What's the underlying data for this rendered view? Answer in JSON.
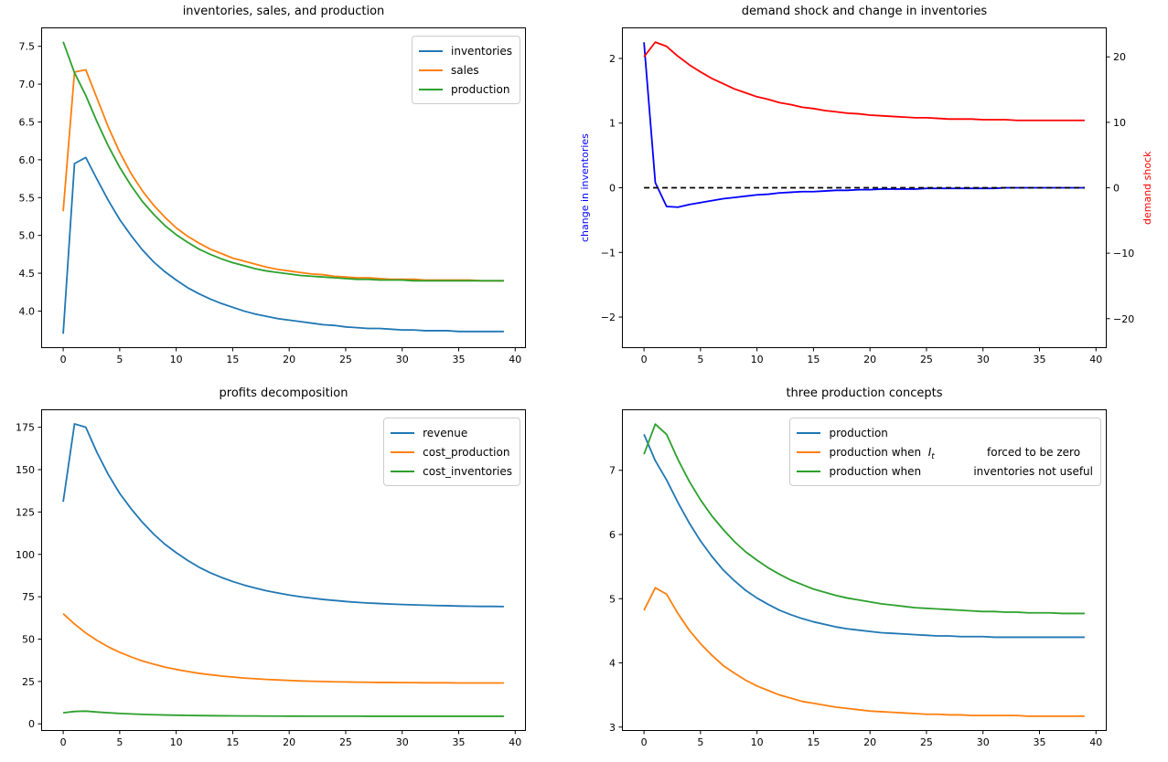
{
  "figure_background": "#ffffff",
  "t": [
    0,
    1,
    2,
    3,
    4,
    5,
    6,
    7,
    8,
    9,
    10,
    11,
    12,
    13,
    14,
    15,
    16,
    17,
    18,
    19,
    20,
    21,
    22,
    23,
    24,
    25,
    26,
    27,
    28,
    29,
    30,
    31,
    32,
    33,
    34,
    35,
    36,
    37,
    38,
    39
  ],
  "chart_data": [
    {
      "key": "plot1",
      "type": "line",
      "title": "inventories, sales, and production",
      "xlim": [
        -1.95,
        40.95
      ],
      "ylim": [
        3.51,
        7.75
      ],
      "grid": false,
      "xticks": {
        "values": [
          0,
          5,
          10,
          15,
          20,
          25,
          30,
          35,
          40
        ],
        "labels": [
          "0",
          "5",
          "10",
          "15",
          "20",
          "25",
          "30",
          "35",
          "40"
        ]
      },
      "yticks": {
        "values": [
          4.0,
          4.5,
          5.0,
          5.5,
          6.0,
          6.5,
          7.0,
          7.5
        ],
        "labels": [
          "4.0",
          "4.5",
          "5.0",
          "5.5",
          "6.0",
          "6.5",
          "7.0",
          "7.5"
        ]
      },
      "legend": {
        "loc": "upper right",
        "items": [
          {
            "color": "#1f77b4",
            "parts": [
              {
                "text": "inventories",
                "style": "normal"
              }
            ]
          },
          {
            "color": "#ff7f0e",
            "parts": [
              {
                "text": "sales",
                "style": "normal"
              }
            ]
          },
          {
            "color": "#2ca02c",
            "parts": [
              {
                "text": "production",
                "style": "normal"
              }
            ]
          }
        ]
      },
      "series": [
        {
          "name": "inventories",
          "color": "#1f77b4",
          "values": [
            3.7,
            5.95,
            6.03,
            5.74,
            5.46,
            5.21,
            5.0,
            4.81,
            4.65,
            4.52,
            4.41,
            4.31,
            4.23,
            4.16,
            4.1,
            4.05,
            4.0,
            3.96,
            3.93,
            3.9,
            3.88,
            3.86,
            3.84,
            3.82,
            3.81,
            3.79,
            3.78,
            3.77,
            3.77,
            3.76,
            3.75,
            3.75,
            3.74,
            3.74,
            3.74,
            3.73,
            3.73,
            3.73,
            3.73,
            3.73
          ]
        },
        {
          "name": "sales",
          "color": "#ff7f0e",
          "values": [
            5.32,
            7.16,
            7.19,
            6.81,
            6.43,
            6.1,
            5.82,
            5.59,
            5.4,
            5.24,
            5.1,
            4.99,
            4.9,
            4.82,
            4.76,
            4.7,
            4.66,
            4.62,
            4.58,
            4.55,
            4.53,
            4.51,
            4.49,
            4.48,
            4.46,
            4.45,
            4.44,
            4.44,
            4.43,
            4.42,
            4.42,
            4.42,
            4.41,
            4.41,
            4.41,
            4.41,
            4.41,
            4.4,
            4.4,
            4.4
          ]
        },
        {
          "name": "production",
          "color": "#2ca02c",
          "values": [
            7.56,
            7.15,
            6.85,
            6.5,
            6.18,
            5.9,
            5.66,
            5.45,
            5.28,
            5.13,
            5.01,
            4.91,
            4.82,
            4.75,
            4.69,
            4.64,
            4.6,
            4.56,
            4.53,
            4.51,
            4.49,
            4.47,
            4.46,
            4.45,
            4.44,
            4.43,
            4.42,
            4.42,
            4.41,
            4.41,
            4.41,
            4.4,
            4.4,
            4.4,
            4.4,
            4.4,
            4.4,
            4.4,
            4.4,
            4.4
          ]
        }
      ]
    },
    {
      "key": "plot2",
      "type": "line",
      "title": "demand shock and change in inventories",
      "ylabel": {
        "text": "change in inventories",
        "color": "#0000ff"
      },
      "ylabel_right": {
        "text": "demand shock",
        "color": "#ff0000"
      },
      "xlim": [
        -1.95,
        40.95
      ],
      "ylim": [
        -2.48,
        2.48
      ],
      "ylim_right": [
        -24.5,
        24.5
      ],
      "grid": false,
      "xticks": {
        "values": [
          0,
          5,
          10,
          15,
          20,
          25,
          30,
          35,
          40
        ],
        "labels": [
          "0",
          "5",
          "10",
          "15",
          "20",
          "25",
          "30",
          "35",
          "40"
        ]
      },
      "yticks": {
        "values": [
          -2,
          -1,
          0,
          1,
          2
        ],
        "labels": [
          "−2",
          "−1",
          "0",
          "1",
          "2"
        ]
      },
      "yticks_right": {
        "values": [
          -20,
          -10,
          0,
          10,
          20
        ],
        "labels": [
          "−20",
          "−10",
          "0",
          "10",
          "20"
        ]
      },
      "series": [
        {
          "name": "change in inventories",
          "color": "#0000ff",
          "axis": "left",
          "values": [
            2.25,
            0.08,
            -0.29,
            -0.3,
            -0.26,
            -0.23,
            -0.2,
            -0.17,
            -0.15,
            -0.13,
            -0.11,
            -0.1,
            -0.08,
            -0.07,
            -0.06,
            -0.06,
            -0.05,
            -0.04,
            -0.04,
            -0.03,
            -0.03,
            -0.02,
            -0.02,
            -0.02,
            -0.02,
            -0.01,
            -0.01,
            -0.01,
            -0.01,
            -0.01,
            -0.01,
            -0.01,
            0.0,
            0.0,
            0.0,
            0.0,
            0.0,
            0.0,
            0.0,
            0.0
          ]
        },
        {
          "name": "zero line",
          "color": "#000000",
          "axis": "left",
          "dash": "6,4",
          "x": [
            0,
            39
          ],
          "values": [
            0,
            0
          ]
        },
        {
          "name": "demand shock",
          "color": "#ff0000",
          "axis": "right",
          "values": [
            20.0,
            22.25,
            21.6,
            20.1,
            18.8,
            17.7,
            16.7,
            15.9,
            15.1,
            14.5,
            13.9,
            13.5,
            13.0,
            12.7,
            12.3,
            12.1,
            11.8,
            11.6,
            11.4,
            11.3,
            11.1,
            11.0,
            10.9,
            10.8,
            10.7,
            10.7,
            10.6,
            10.5,
            10.5,
            10.5,
            10.4,
            10.4,
            10.4,
            10.3,
            10.3,
            10.3,
            10.3,
            10.3,
            10.3,
            10.3
          ]
        }
      ]
    },
    {
      "key": "plot3",
      "type": "line",
      "title": "profits decomposition",
      "xlim": [
        -1.95,
        40.95
      ],
      "ylim": [
        -4.2,
        185.6
      ],
      "grid": false,
      "xticks": {
        "values": [
          0,
          5,
          10,
          15,
          20,
          25,
          30,
          35,
          40
        ],
        "labels": [
          "0",
          "5",
          "10",
          "15",
          "20",
          "25",
          "30",
          "35",
          "40"
        ]
      },
      "yticks": {
        "values": [
          0,
          25,
          50,
          75,
          100,
          125,
          150,
          175
        ],
        "labels": [
          "0",
          "25",
          "50",
          "75",
          "100",
          "125",
          "150",
          "175"
        ]
      },
      "legend": {
        "loc": "upper right",
        "items": [
          {
            "color": "#1f77b4",
            "parts": [
              {
                "text": "revenue",
                "style": "normal"
              }
            ]
          },
          {
            "color": "#ff7f0e",
            "parts": [
              {
                "text": "cost_production",
                "style": "normal"
              }
            ]
          },
          {
            "color": "#2ca02c",
            "parts": [
              {
                "text": "cost_inventories",
                "style": "normal"
              }
            ]
          }
        ]
      },
      "series": [
        {
          "name": "revenue",
          "color": "#1f77b4",
          "values": [
            131,
            177,
            175,
            160,
            147,
            136,
            127,
            119,
            112,
            106,
            101,
            96.5,
            92.5,
            89.2,
            86.4,
            84.0,
            81.9,
            80.1,
            78.5,
            77.2,
            76.0,
            75.0,
            74.2,
            73.4,
            72.8,
            72.2,
            71.7,
            71.3,
            71.0,
            70.7,
            70.4,
            70.2,
            70.0,
            69.8,
            69.7,
            69.5,
            69.4,
            69.3,
            69.3,
            69.2
          ]
        },
        {
          "name": "cost_production",
          "color": "#ff7f0e",
          "values": [
            65.0,
            58.9,
            53.6,
            49.2,
            45.4,
            42.2,
            39.5,
            37.1,
            35.2,
            33.5,
            32.1,
            30.9,
            29.8,
            29.0,
            28.2,
            27.6,
            27.0,
            26.6,
            26.2,
            25.9,
            25.6,
            25.3,
            25.1,
            25.0,
            24.8,
            24.7,
            24.6,
            24.5,
            24.4,
            24.4,
            24.3,
            24.3,
            24.2,
            24.2,
            24.2,
            24.1,
            24.1,
            24.1,
            24.1,
            24.1
          ]
        },
        {
          "name": "cost_inventories",
          "color": "#2ca02c",
          "values": [
            6.5,
            7.3,
            7.5,
            6.95,
            6.5,
            6.13,
            5.83,
            5.58,
            5.38,
            5.21,
            5.07,
            4.96,
            4.87,
            4.79,
            4.73,
            4.68,
            4.64,
            4.61,
            4.58,
            4.56,
            4.54,
            4.52,
            4.51,
            4.5,
            4.49,
            4.48,
            4.48,
            4.47,
            4.47,
            4.46,
            4.46,
            4.46,
            4.45,
            4.45,
            4.45,
            4.45,
            4.45,
            4.45,
            4.45,
            4.45
          ]
        }
      ]
    },
    {
      "key": "plot4",
      "type": "line",
      "title": "three production concepts",
      "xlim": [
        -1.95,
        40.95
      ],
      "ylim": [
        2.94,
        7.95
      ],
      "grid": false,
      "xticks": {
        "values": [
          0,
          5,
          10,
          15,
          20,
          25,
          30,
          35,
          40
        ],
        "labels": [
          "0",
          "5",
          "10",
          "15",
          "20",
          "25",
          "30",
          "35",
          "40"
        ]
      },
      "yticks": {
        "values": [
          3,
          4,
          5,
          6,
          7
        ],
        "labels": [
          "3",
          "4",
          "5",
          "6",
          "7"
        ]
      },
      "legend": {
        "loc": "upper right",
        "items": [
          {
            "color": "#1f77b4",
            "parts": [
              {
                "text": "production",
                "style": "normal"
              }
            ]
          },
          {
            "color": "#ff7f0e",
            "parts": [
              {
                "text": "production when  ",
                "style": "normal"
              },
              {
                "text": "I",
                "style": "math-italic"
              },
              {
                "text": "t",
                "style": "math-sub"
              },
              {
                "text": "               forced to be zero",
                "style": "normal"
              }
            ]
          },
          {
            "color": "#2ca02c",
            "parts": [
              {
                "text": "production when               inventories not useful",
                "style": "normal"
              }
            ]
          }
        ]
      },
      "series": [
        {
          "name": "production",
          "color": "#1f77b4",
          "values": [
            7.56,
            7.15,
            6.85,
            6.5,
            6.18,
            5.9,
            5.66,
            5.45,
            5.28,
            5.13,
            5.01,
            4.91,
            4.82,
            4.75,
            4.69,
            4.64,
            4.6,
            4.56,
            4.53,
            4.51,
            4.49,
            4.47,
            4.46,
            4.45,
            4.44,
            4.43,
            4.42,
            4.42,
            4.41,
            4.41,
            4.41,
            4.4,
            4.4,
            4.4,
            4.4,
            4.4,
            4.4,
            4.4,
            4.4,
            4.4
          ]
        },
        {
          "name": "production when I_t forced to be zero",
          "color": "#ff7f0e",
          "values": [
            4.82,
            5.17,
            5.07,
            4.77,
            4.51,
            4.3,
            4.12,
            3.96,
            3.84,
            3.73,
            3.64,
            3.57,
            3.5,
            3.45,
            3.4,
            3.37,
            3.34,
            3.31,
            3.29,
            3.27,
            3.25,
            3.24,
            3.23,
            3.22,
            3.21,
            3.2,
            3.2,
            3.19,
            3.19,
            3.18,
            3.18,
            3.18,
            3.18,
            3.18,
            3.17,
            3.17,
            3.17,
            3.17,
            3.17,
            3.17
          ]
        },
        {
          "name": "production when inventories not useful",
          "color": "#2ca02c",
          "values": [
            7.25,
            7.72,
            7.56,
            7.17,
            6.83,
            6.54,
            6.29,
            6.08,
            5.89,
            5.73,
            5.6,
            5.48,
            5.38,
            5.29,
            5.22,
            5.15,
            5.1,
            5.05,
            5.01,
            4.98,
            4.95,
            4.92,
            4.9,
            4.88,
            4.86,
            4.85,
            4.84,
            4.83,
            4.82,
            4.81,
            4.8,
            4.8,
            4.79,
            4.79,
            4.78,
            4.78,
            4.78,
            4.77,
            4.77,
            4.77
          ]
        }
      ]
    }
  ]
}
